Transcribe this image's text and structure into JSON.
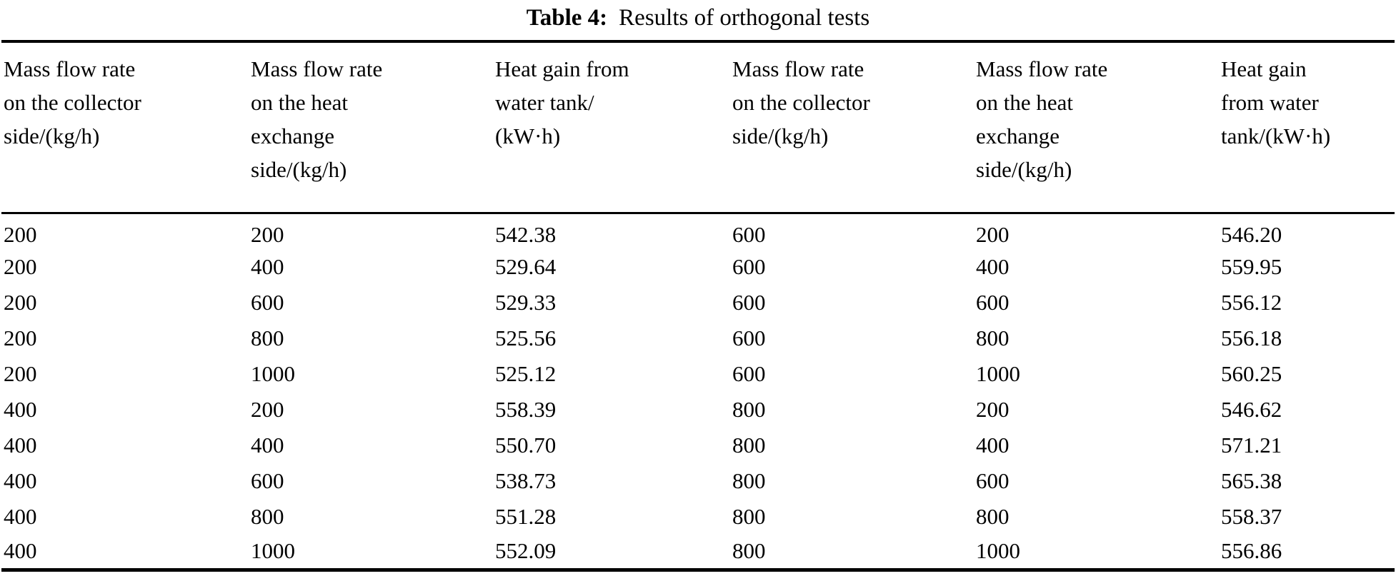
{
  "title": {
    "label": "Table 4:",
    "text": "Results of orthogonal tests"
  },
  "table": {
    "header_lines": [
      "Mass flow rate\non the collector\nside/(kg/h)",
      "Mass flow rate\non the heat\nexchange\nside/(kg/h)",
      "Heat gain from\nwater tank/\n(kW·h)",
      "Mass flow rate\non the collector\nside/(kg/h)",
      "Mass flow rate\non the heat\nexchange\nside/(kg/h)",
      "Heat gain\nfrom water\ntank/(kW·h)"
    ],
    "rows": [
      [
        "200",
        "200",
        "542.38",
        "600",
        "200",
        "546.20"
      ],
      [
        "200",
        "400",
        "529.64",
        "600",
        "400",
        "559.95"
      ],
      [
        "200",
        "600",
        "529.33",
        "600",
        "600",
        "556.12"
      ],
      [
        "200",
        "800",
        "525.56",
        "600",
        "800",
        "556.18"
      ],
      [
        "200",
        "1000",
        "525.12",
        "600",
        "1000",
        "560.25"
      ],
      [
        "400",
        "200",
        "558.39",
        "800",
        "200",
        "546.62"
      ],
      [
        "400",
        "400",
        "550.70",
        "800",
        "400",
        "571.21"
      ],
      [
        "400",
        "600",
        "538.73",
        "800",
        "600",
        "565.38"
      ],
      [
        "400",
        "800",
        "551.28",
        "800",
        "800",
        "558.37"
      ],
      [
        "400",
        "1000",
        "552.09",
        "800",
        "1000",
        "556.86"
      ]
    ]
  }
}
